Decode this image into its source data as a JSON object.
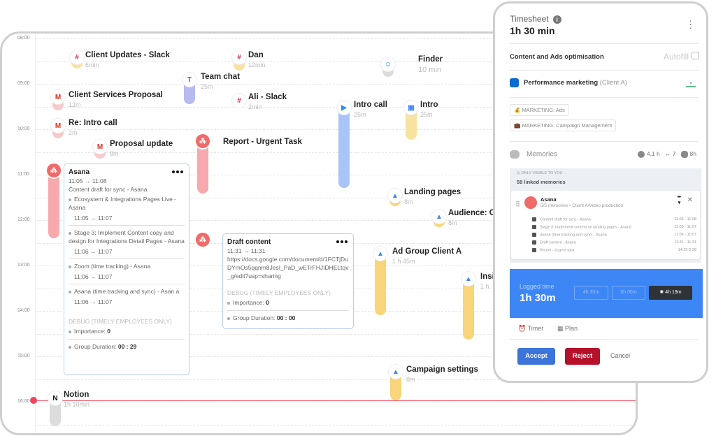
{
  "calendar": {
    "hours": [
      "08:00",
      "09:00",
      "10:00",
      "11:00",
      "12:00",
      "13:00",
      "14:00",
      "15:00",
      "16:00"
    ],
    "events": [
      {
        "title": "Client Updates - Slack",
        "sub": "6min",
        "icon": "slack-icon"
      },
      {
        "title": "Dan",
        "sub": "12min",
        "icon": "slack-icon"
      },
      {
        "title": "Team chat",
        "sub": "25m",
        "icon": "teams-icon"
      },
      {
        "title": "Finder",
        "sub": "10 min",
        "icon": "finder-icon"
      },
      {
        "title": "Client Services Proposal",
        "sub": "12m",
        "icon": "gmail-icon"
      },
      {
        "title": "Ali - Slack",
        "sub": "2min",
        "icon": "slack-icon"
      },
      {
        "title": "Intro call",
        "sub": "25m",
        "icon": "zoom-icon"
      },
      {
        "title": "Intro",
        "sub": "25m",
        "icon": "google-calendar-icon"
      },
      {
        "title": "Re: Intro call",
        "sub": "2m",
        "icon": "gmail-icon"
      },
      {
        "title": "Proposal update",
        "sub": "8m",
        "icon": "gmail-icon"
      },
      {
        "title": "Report - Urgent Task",
        "sub": "",
        "icon": "asana-icon"
      },
      {
        "title": "Landing pages",
        "sub": "8m",
        "icon": "google-ads-icon"
      },
      {
        "title": "Audience: C",
        "sub": "8m",
        "icon": "google-ads-icon"
      },
      {
        "title": "Ad Group Client A",
        "sub": "1 h 45m",
        "icon": "google-ads-icon"
      },
      {
        "title": "Insi",
        "sub": "1 h",
        "icon": "google-ads-icon"
      },
      {
        "title": "Campaign settings",
        "sub": "8m",
        "icon": "google-ads-icon"
      },
      {
        "title": "Notion",
        "sub": "1h 10min",
        "icon": "notion-icon"
      }
    ],
    "asana_card": {
      "title": "Asana",
      "time": "11:05 → 11:08",
      "desc": "Content draft for sync - Asana",
      "items": [
        {
          "text": "Ecosystem & Integrations Pages Live - Asana",
          "time": "11:05 → 11:07"
        },
        {
          "text": "Stage 3: Implement Content copy and design for Integrations Detail Pages - Asana",
          "time": "11:06 → 11:07"
        },
        {
          "text": "Zoom (time tracking) - Asana",
          "time": "11:06 → 11:07"
        },
        {
          "text": "Asana (time tracking and sync) - Asan a",
          "time": "11:06 → 11:07"
        }
      ],
      "debug": "DEBUG (TIMELY EMPLOYEES ONLY)",
      "importance_label": "Importance:",
      "importance": "0",
      "group_label": "Group Duration:",
      "group": "00 : 29"
    },
    "draft_card": {
      "title": "Draft content",
      "time": "11:31 → 11:31",
      "url": "https://docs.google.com/document/d/1FCTjDuDYmOs5qqnm8JesI_PaD_wETrFHJIDHELtqv_g/edit?usp=sharing",
      "debug": "DEBUG (TIMELY EMPLOYEES ONLY)",
      "importance_label": "Importance:",
      "importance": "0",
      "group_label": "Group Duration:",
      "group": "00 : 00"
    }
  },
  "panel": {
    "title": "Timesheet",
    "duration": "1h 30 min",
    "project": "Content and Ads optimisation",
    "autofill": "Autofill",
    "pm_name": "Performance marketing",
    "pm_client": "(Client A)",
    "pm_color": "#0a6ad3",
    "tags": [
      "MARKETING: Ads",
      "MARKETING: Campaign Management"
    ],
    "memories": {
      "label": "Memories",
      "hours": "4.1 h",
      "links": "↔ 7",
      "ai": "8h",
      "only": "ONLY VISIBLE TO YOU",
      "linked": "59 linked memories",
      "group": {
        "name": "Asana",
        "sub": "5/5 memories • Client A/Video production",
        "rows": [
          {
            "text": "Content draft for sync - Asana",
            "time": "11:05 - 11:08"
          },
          {
            "text": "Stage 3: Implement content on landing pages - Asana",
            "time": "11:05 - 11:07"
          },
          {
            "text": "Asana (time tracking and sync) - Asana",
            "time": "11:06 - 11:07"
          },
          {
            "text": "Draft content - Asana",
            "time": "11:31 - 11:31"
          },
          {
            "text": "Report - Urgent task",
            "time": "14:25-2:28"
          }
        ]
      }
    },
    "logged": {
      "label": "Logged time",
      "value": "1h 30m",
      "chips": [
        "4h 30m",
        "5h 00m",
        "4h 19m"
      ]
    },
    "timer": "Timer",
    "plan": "Plan",
    "accept": "Accept",
    "reject": "Reject",
    "cancel": "Cancel",
    "colors": {
      "logged_bg": "#3d86f5",
      "accept": "#3d74d9",
      "reject": "#b5112a"
    }
  }
}
